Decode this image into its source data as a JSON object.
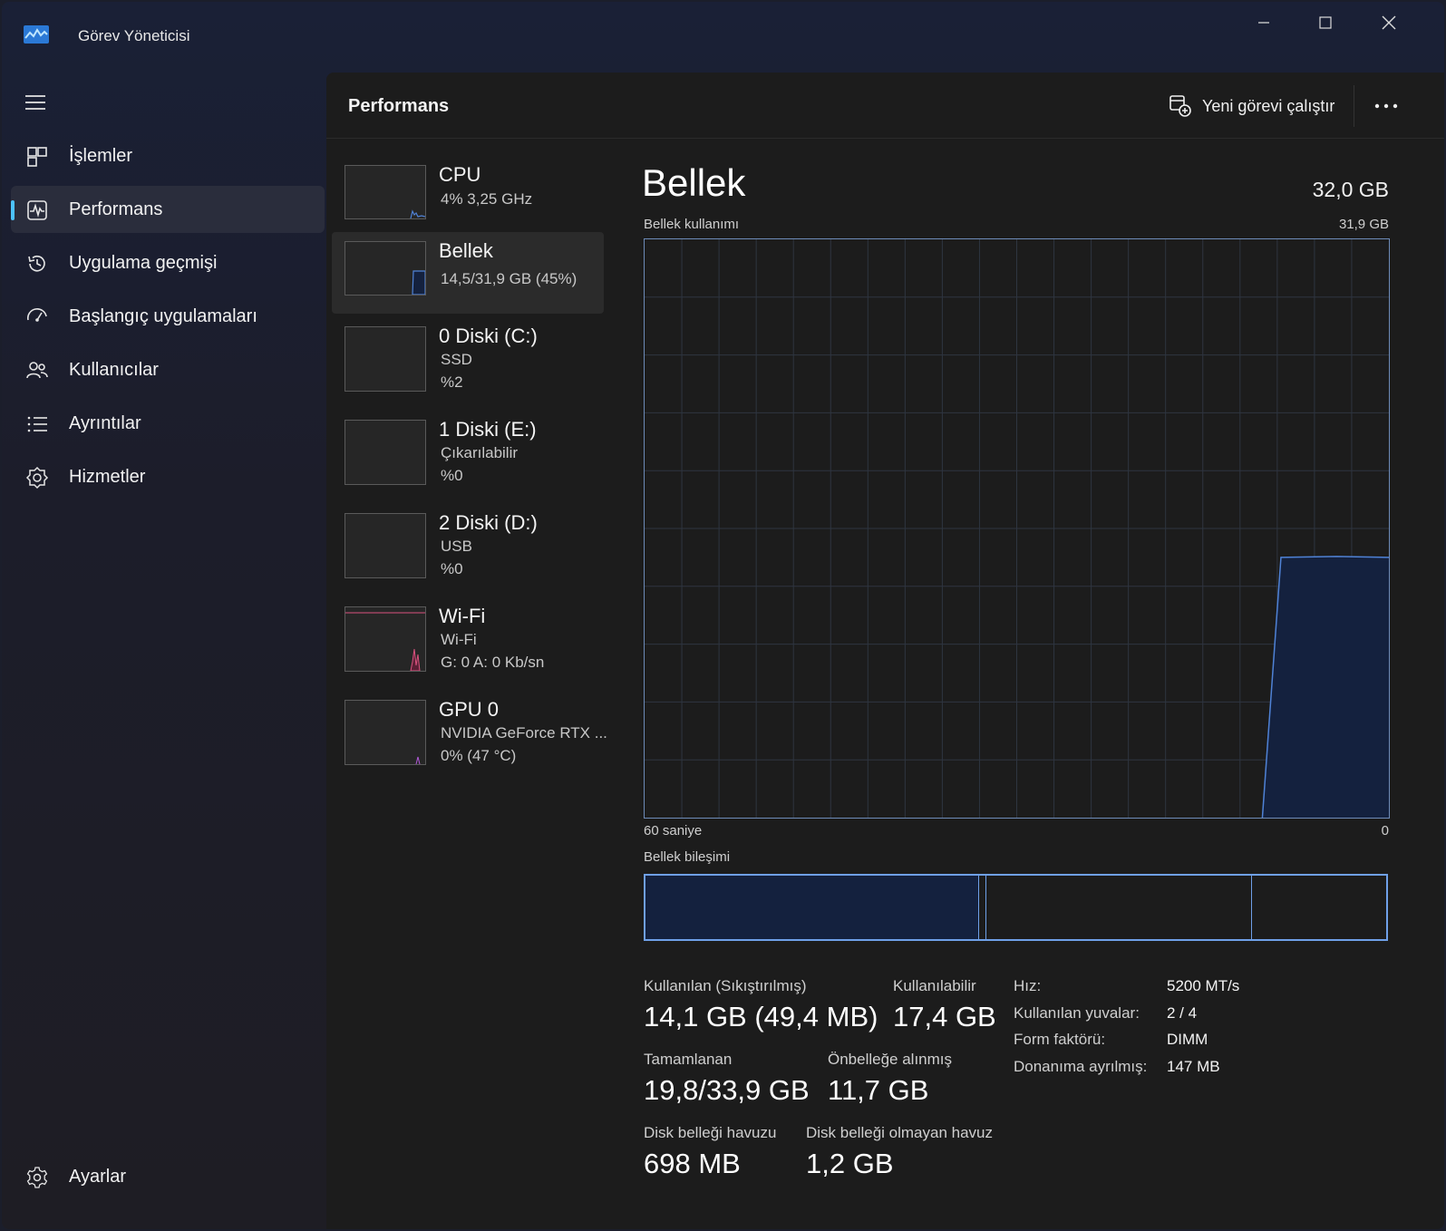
{
  "app": {
    "title": "Görev Yöneticisi"
  },
  "nav": {
    "items": [
      {
        "label": "İşlemler",
        "icon": "processes-icon"
      },
      {
        "label": "Performans",
        "icon": "performance-icon"
      },
      {
        "label": "Uygulama geçmişi",
        "icon": "app-history-icon"
      },
      {
        "label": "Başlangıç uygulamaları",
        "icon": "startup-apps-icon"
      },
      {
        "label": "Kullanıcılar",
        "icon": "users-icon"
      },
      {
        "label": "Ayrıntılar",
        "icon": "details-icon"
      },
      {
        "label": "Hizmetler",
        "icon": "services-icon"
      }
    ],
    "settings_label": "Ayarlar",
    "active_index": 1
  },
  "header": {
    "title": "Performans",
    "run_task_label": "Yeni görevi çalıştır"
  },
  "devices": [
    {
      "name": "CPU",
      "line1": "4%  3,25 GHz",
      "line2": ""
    },
    {
      "name": "Bellek",
      "line1": "14,5/31,9 GB (45%)",
      "line2": ""
    },
    {
      "name": "0 Diski (C:)",
      "line1": "SSD",
      "line2": "%2"
    },
    {
      "name": "1 Diski (E:)",
      "line1": "Çıkarılabilir",
      "line2": "%0"
    },
    {
      "name": "2 Diski (D:)",
      "line1": "USB",
      "line2": "%0"
    },
    {
      "name": "Wi-Fi",
      "line1": "Wi-Fi",
      "line2": "G: 0  A: 0 Kb/sn"
    },
    {
      "name": "GPU 0",
      "line1": "NVIDIA GeForce RTX ...",
      "line2": "0%  (47 °C)"
    }
  ],
  "detail": {
    "title": "Bellek",
    "total": "32,0 GB",
    "usage_label": "Bellek kullanımı",
    "usage_max": "31,9 GB",
    "time_left": "60 saniye",
    "time_right": "0",
    "composition_label": "Bellek bileşimi",
    "usage_fraction_recent": 0.45,
    "stats": {
      "in_use_label": "Kullanılan (Sıkıştırılmış)",
      "in_use_value": "14,1 GB (49,4 MB)",
      "available_label": "Kullanılabilir",
      "available_value": "17,4 GB",
      "committed_label": "Tamamlanan",
      "committed_value": "19,8/33,9 GB",
      "cached_label": "Önbelleğe alınmış",
      "cached_value": "11,7 GB",
      "paged_label": "Disk belleği havuzu",
      "paged_value": "698 MB",
      "nonpaged_label": "Disk belleği olmayan havuz",
      "nonpaged_value": "1,2 GB"
    },
    "specs": [
      {
        "key": "Hız:",
        "value": "5200 MT/s"
      },
      {
        "key": "Kullanılan yuvalar:",
        "value": "2 / 4"
      },
      {
        "key": "Form faktörü:",
        "value": "DIMM"
      },
      {
        "key": "Donanıma ayrılmış:",
        "value": "147 MB"
      }
    ]
  },
  "colors": {
    "memory_line": "#4f82d6",
    "memory_fill": "#14213e",
    "accent": "#4cc2ff",
    "wifi_line": "#d9527f"
  }
}
